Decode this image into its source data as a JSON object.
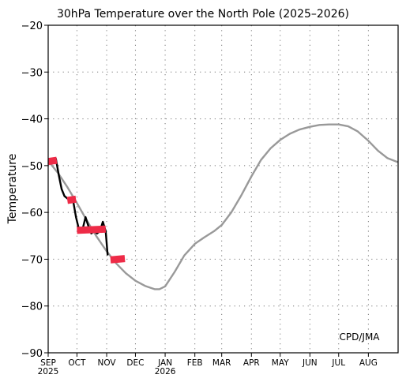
{
  "chart_data": {
    "type": "line",
    "title": "30hPa Temperature over the North Pole (2025–2026)",
    "ylabel": "Temperature",
    "xlabel": "",
    "ylim": [
      -90,
      -20
    ],
    "yticks": [
      -20,
      -30,
      -40,
      -50,
      -60,
      -70,
      -80,
      -90
    ],
    "grid": true,
    "annotation": "CPD/JMA",
    "x_range": [
      "2025-09-01",
      "2026-08-31"
    ],
    "month_ticks": [
      {
        "label": "SEP",
        "date": "2025-09-01",
        "year": "2025"
      },
      {
        "label": "OCT",
        "date": "2025-10-01"
      },
      {
        "label": "NOV",
        "date": "2025-11-01"
      },
      {
        "label": "DEC",
        "date": "2025-12-01"
      },
      {
        "label": "JAN",
        "date": "2026-01-01",
        "year": "2026"
      },
      {
        "label": "FEB",
        "date": "2026-02-01"
      },
      {
        "label": "MAR",
        "date": "2026-03-01"
      },
      {
        "label": "APR",
        "date": "2026-04-01"
      },
      {
        "label": "MAY",
        "date": "2026-05-01"
      },
      {
        "label": "JUN",
        "date": "2026-06-01"
      },
      {
        "label": "JUL",
        "date": "2026-07-01"
      },
      {
        "label": "AUG",
        "date": "2026-08-01"
      }
    ],
    "series": [
      {
        "role": "climatology",
        "color": "#999999",
        "points": [
          [
            "2025-09-01",
            -49.0
          ],
          [
            "2025-09-11",
            -51.5
          ],
          [
            "2025-09-21",
            -54.6
          ],
          [
            "2025-10-01",
            -58.0
          ],
          [
            "2025-10-11",
            -61.6
          ],
          [
            "2025-10-21",
            -65.0
          ],
          [
            "2025-11-01",
            -68.3
          ],
          [
            "2025-11-11",
            -70.9
          ],
          [
            "2025-11-21",
            -73.0
          ],
          [
            "2025-12-01",
            -74.6
          ],
          [
            "2025-12-11",
            -75.7
          ],
          [
            "2025-12-21",
            -76.4
          ],
          [
            "2025-12-26",
            -76.4
          ],
          [
            "2026-01-01",
            -75.8
          ],
          [
            "2026-01-11",
            -72.7
          ],
          [
            "2026-01-21",
            -69.2
          ],
          [
            "2026-02-01",
            -66.7
          ],
          [
            "2026-02-11",
            -65.3
          ],
          [
            "2026-02-21",
            -64.0
          ],
          [
            "2026-03-01",
            -62.7
          ],
          [
            "2026-03-11",
            -60.0
          ],
          [
            "2026-03-21",
            -56.5
          ],
          [
            "2026-04-01",
            -52.3
          ],
          [
            "2026-04-11",
            -48.8
          ],
          [
            "2026-04-21",
            -46.3
          ],
          [
            "2026-05-01",
            -44.5
          ],
          [
            "2026-05-11",
            -43.2
          ],
          [
            "2026-05-21",
            -42.3
          ],
          [
            "2026-06-01",
            -41.7
          ],
          [
            "2026-06-11",
            -41.3
          ],
          [
            "2026-06-21",
            -41.2
          ],
          [
            "2026-07-01",
            -41.2
          ],
          [
            "2026-07-11",
            -41.6
          ],
          [
            "2026-07-21",
            -42.7
          ],
          [
            "2026-08-01",
            -44.7
          ],
          [
            "2026-08-11",
            -46.8
          ],
          [
            "2026-08-21",
            -48.4
          ],
          [
            "2026-08-31",
            -49.2
          ]
        ]
      },
      {
        "role": "observed",
        "color": "#000000",
        "points": [
          [
            "2025-09-01",
            -49.5
          ],
          [
            "2025-09-05",
            -49.0
          ],
          [
            "2025-09-09",
            -48.5
          ],
          [
            "2025-09-12",
            -52.0
          ],
          [
            "2025-09-15",
            -55.0
          ],
          [
            "2025-09-18",
            -56.5
          ],
          [
            "2025-09-21",
            -57.0
          ],
          [
            "2025-09-24",
            -57.0
          ],
          [
            "2025-09-27",
            -57.5
          ],
          [
            "2025-09-30",
            -61.0
          ],
          [
            "2025-10-03",
            -63.5
          ],
          [
            "2025-10-07",
            -63.5
          ],
          [
            "2025-10-10",
            -61.0
          ],
          [
            "2025-10-13",
            -63.0
          ],
          [
            "2025-10-16",
            -64.5
          ],
          [
            "2025-10-19",
            -64.0
          ],
          [
            "2025-10-22",
            -64.5
          ],
          [
            "2025-10-25",
            -64.0
          ],
          [
            "2025-10-28",
            -62.0
          ],
          [
            "2025-10-31",
            -64.0
          ],
          [
            "2025-11-02",
            -69.0
          ]
        ]
      }
    ],
    "period_means": [
      {
        "start": "2025-09-01",
        "end": "2025-09-10",
        "value": -49.0,
        "color": "#ee2b47"
      },
      {
        "start": "2025-09-21",
        "end": "2025-09-30",
        "value": -57.3,
        "color": "#ee2b47"
      },
      {
        "start": "2025-10-01",
        "end": "2025-10-31",
        "value": -63.7,
        "color": "#ee2b47"
      },
      {
        "start": "2025-11-05",
        "end": "2025-11-20",
        "value": -70.0,
        "color": "#ee2b47"
      }
    ]
  }
}
